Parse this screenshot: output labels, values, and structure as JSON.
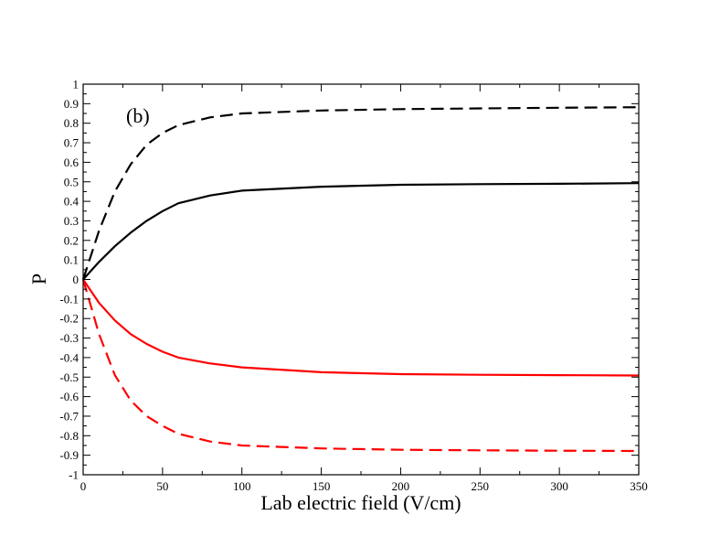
{
  "chart_data": {
    "type": "line",
    "title": "",
    "panel_label": "(b)",
    "xlabel": "Lab electric field (V/cm)",
    "ylabel": "P",
    "xlim": [
      0,
      350
    ],
    "ylim": [
      -1,
      1
    ],
    "x_ticks": [
      0,
      50,
      100,
      150,
      200,
      250,
      300,
      350
    ],
    "x_tick_labels": [
      "0",
      "50",
      "100",
      "150",
      "200",
      "250",
      "300",
      "350"
    ],
    "y_ticks": [
      -1,
      -0.9,
      -0.8,
      -0.7,
      -0.6,
      -0.5,
      -0.4,
      -0.3,
      -0.2,
      -0.1,
      0,
      0.1,
      0.2,
      0.3,
      0.4,
      0.5,
      0.6,
      0.7,
      0.8,
      0.9,
      1
    ],
    "y_tick_labels": [
      "-1",
      "-0.9",
      "-0.8",
      "-0.7",
      "-0.6",
      "-0.5",
      "-0.4",
      "-0.3",
      "-0.2",
      "-0.1",
      "0",
      "0.1",
      "0.2",
      "0.3",
      "0.4",
      "0.5",
      "0.6",
      "0.7",
      "0.8",
      "0.9",
      "1"
    ],
    "grid": false,
    "series": [
      {
        "name": "black-dashed",
        "color": "#000000",
        "dash": true,
        "x": [
          0,
          10,
          20,
          30,
          40,
          50,
          60,
          80,
          100,
          150,
          200,
          250,
          300,
          350
        ],
        "y": [
          0,
          0.25,
          0.45,
          0.59,
          0.69,
          0.75,
          0.79,
          0.83,
          0.85,
          0.865,
          0.872,
          0.876,
          0.879,
          0.882
        ]
      },
      {
        "name": "black-solid",
        "color": "#000000",
        "dash": false,
        "x": [
          0,
          10,
          20,
          30,
          40,
          50,
          60,
          80,
          100,
          150,
          200,
          250,
          300,
          350
        ],
        "y": [
          0,
          0.09,
          0.17,
          0.24,
          0.3,
          0.35,
          0.39,
          0.43,
          0.455,
          0.475,
          0.485,
          0.488,
          0.49,
          0.493
        ]
      },
      {
        "name": "red-solid",
        "color": "#ff0000",
        "dash": false,
        "x": [
          0,
          10,
          20,
          30,
          40,
          50,
          60,
          80,
          100,
          150,
          200,
          250,
          300,
          350
        ],
        "y": [
          0,
          -0.12,
          -0.21,
          -0.28,
          -0.33,
          -0.37,
          -0.4,
          -0.43,
          -0.45,
          -0.475,
          -0.485,
          -0.488,
          -0.49,
          -0.492
        ]
      },
      {
        "name": "red-dashed",
        "color": "#ff0000",
        "dash": true,
        "x": [
          0,
          10,
          20,
          30,
          40,
          50,
          60,
          80,
          100,
          150,
          200,
          250,
          300,
          350
        ],
        "y": [
          0,
          -0.28,
          -0.49,
          -0.62,
          -0.7,
          -0.75,
          -0.79,
          -0.83,
          -0.85,
          -0.865,
          -0.872,
          -0.875,
          -0.877,
          -0.878
        ]
      }
    ]
  }
}
